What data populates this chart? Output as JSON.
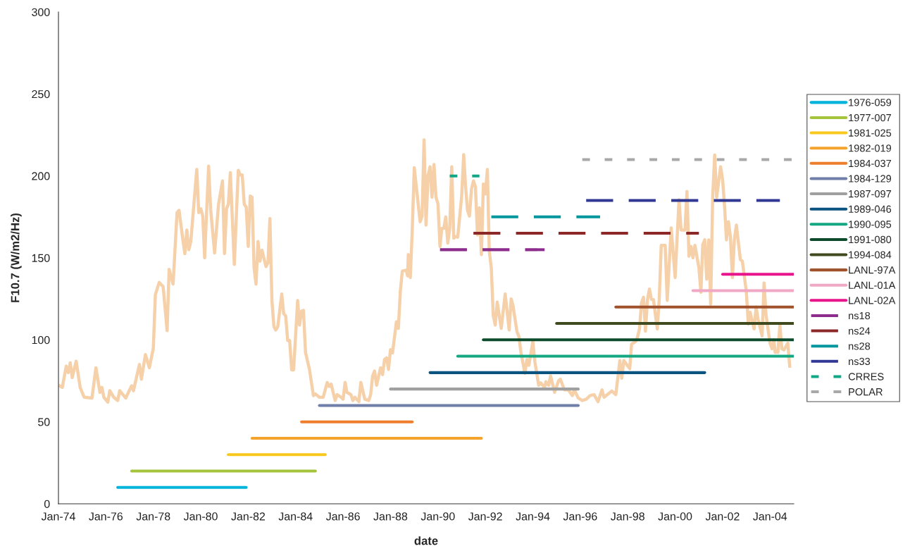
{
  "chart_data": {
    "type": "line",
    "xlabel": "date",
    "ylabel": "F10.7 (W/m2/Hz)",
    "xlim": [
      "1974-01",
      "2005-01"
    ],
    "ylim": [
      0,
      300
    ],
    "xticks": [
      {
        "value": "1974-01",
        "label": "Jan-74"
      },
      {
        "value": "1976-01",
        "label": "Jan-76"
      },
      {
        "value": "1978-01",
        "label": "Jan-78"
      },
      {
        "value": "1980-01",
        "label": "Jan-80"
      },
      {
        "value": "1982-01",
        "label": "Jan-82"
      },
      {
        "value": "1984-01",
        "label": "Jan-84"
      },
      {
        "value": "1986-01",
        "label": "Jan-86"
      },
      {
        "value": "1988-01",
        "label": "Jan-88"
      },
      {
        "value": "1990-01",
        "label": "Jan-90"
      },
      {
        "value": "1992-01",
        "label": "Jan-92"
      },
      {
        "value": "1994-01",
        "label": "Jan-94"
      },
      {
        "value": "1996-01",
        "label": "Jan-96"
      },
      {
        "value": "1998-01",
        "label": "Jan-98"
      },
      {
        "value": "2000-01",
        "label": "Jan-00"
      },
      {
        "value": "2002-01",
        "label": "Jan-02"
      },
      {
        "value": "2004-01",
        "label": "Jan-04"
      }
    ],
    "yticks": [
      0,
      50,
      100,
      150,
      200,
      250,
      300
    ],
    "grid": false,
    "legend": "right",
    "marker": "none",
    "series": [
      {
        "color": "#f5d0a9",
        "line_style": "solid",
        "x": [
          "1974-01",
          "1974-03",
          "1974-05",
          "1974-06",
          "1974-07",
          "1974-08",
          "1974-10",
          "1974-12",
          "1975-02",
          "1975-06",
          "1975-08",
          "1975-10",
          "1975-11",
          "1975-12",
          "1976-02",
          "1976-03",
          "1976-05",
          "1976-07",
          "1976-08",
          "1976-11",
          "1977-02",
          "1977-03",
          "1977-06",
          "1977-07",
          "1977-09",
          "1977-11",
          "1978-01",
          "1978-02",
          "1978-04",
          "1978-06",
          "1978-08",
          "1978-09",
          "1978-11",
          "1979-01",
          "1979-02",
          "1979-04",
          "1979-05",
          "1979-06",
          "1979-07",
          "1979-08",
          "1979-11",
          "1979-12",
          "1980-01",
          "1980-02",
          "1980-03",
          "1980-05",
          "1980-06",
          "1980-08",
          "1980-10",
          "1980-12",
          "1981-01",
          "1981-02",
          "1981-03",
          "1981-04",
          "1981-06",
          "1981-08",
          "1981-09",
          "1981-10",
          "1981-11",
          "1981-12",
          "1982-01",
          "1982-02",
          "1982-03",
          "1982-04",
          "1982-05",
          "1982-06",
          "1982-07",
          "1982-08",
          "1982-10",
          "1982-11",
          "1982-12",
          "1983-01",
          "1983-02",
          "1983-03",
          "1983-04",
          "1983-06",
          "1983-07",
          "1983-08",
          "1983-09",
          "1983-10",
          "1983-11",
          "1983-12",
          "1984-02",
          "1984-03",
          "1984-04",
          "1984-05",
          "1984-06",
          "1984-08",
          "1984-10",
          "1984-11",
          "1985-01",
          "1985-03",
          "1985-05",
          "1985-06",
          "1985-07",
          "1985-09",
          "1985-10",
          "1985-12",
          "1986-01",
          "1986-02",
          "1986-03",
          "1986-05",
          "1986-06",
          "1986-07",
          "1986-09",
          "1986-10",
          "1986-12",
          "1987-02",
          "1987-03",
          "1987-04",
          "1987-05",
          "1987-06",
          "1987-08",
          "1987-09",
          "1987-10",
          "1987-11",
          "1987-12",
          "1988-01",
          "1988-02",
          "1988-04",
          "1988-05",
          "1988-06",
          "1988-07",
          "1988-09",
          "1988-09-20",
          "1988-10",
          "1988-11",
          "1988-12",
          "1989-01",
          "1989-04",
          "1989-05",
          "1989-06",
          "1989-07",
          "1989-08",
          "1989-09",
          "1989-10",
          "1989-11",
          "1989-12",
          "1990-01",
          "1990-02",
          "1990-03",
          "1990-04",
          "1990-05",
          "1990-06",
          "1990-07",
          "1990-08",
          "1990-09",
          "1990-10",
          "1990-11",
          "1991-01",
          "1991-02",
          "1991-03",
          "1991-04",
          "1991-05",
          "1991-06",
          "1991-07",
          "1991-08",
          "1991-09",
          "1991-10",
          "1991-11",
          "1991-12",
          "1992-01",
          "1992-02",
          "1992-03",
          "1992-04",
          "1992-05",
          "1992-06",
          "1992-07",
          "1992-09",
          "1992-11",
          "1993-01",
          "1993-02",
          "1993-03",
          "1993-05",
          "1993-06",
          "1993-07",
          "1993-09",
          "1993-10",
          "1993-11",
          "1994-01",
          "1994-02",
          "1994-04",
          "1994-05",
          "1994-07",
          "1994-07-20",
          "1994-09",
          "1994-10",
          "1994-12",
          "1995-02",
          "1995-03",
          "1995-05",
          "1995-07",
          "1995-09",
          "1995-10",
          "1995-12",
          "1996-02",
          "1996-04",
          "1996-06",
          "1996-08",
          "1996-10",
          "1996-12",
          "1997-01",
          "1997-05",
          "1997-07",
          "1997-08",
          "1997-09",
          "1997-10",
          "1997-11",
          "1998-02",
          "1998-03",
          "1998-05",
          "1998-06",
          "1998-07",
          "1998-08",
          "1998-09",
          "1998-10",
          "1998-11",
          "1998-12",
          "1999-01",
          "1999-02",
          "1999-04",
          "1999-05",
          "1999-06",
          "1999-08",
          "1999-09",
          "1999-11",
          "2000-01",
          "2000-03",
          "2000-04",
          "2000-06",
          "2000-07",
          "2000-08",
          "2000-09",
          "2000-10",
          "2000-11",
          "2001-01",
          "2001-02",
          "2001-03",
          "2001-04",
          "2001-05",
          "2001-06",
          "2001-07",
          "2001-08",
          "2001-09",
          "2001-10",
          "2001-12",
          "2002-01",
          "2002-02",
          "2002-03",
          "2002-04",
          "2002-05",
          "2002-06",
          "2002-07",
          "2002-08",
          "2002-10",
          "2002-11",
          "2003-01",
          "2003-02",
          "2003-03",
          "2003-05",
          "2003-06",
          "2003-07",
          "2003-09",
          "2003-10",
          "2003-11",
          "2004-01",
          "2004-02",
          "2004-03",
          "2004-03-20",
          "2004-05",
          "2004-06",
          "2004-07",
          "2004-08",
          "2004-10",
          "2004-11"
        ],
        "values": [
          72.3,
          71,
          84,
          80,
          86,
          77,
          87,
          71,
          65,
          64.5,
          83,
          68,
          71,
          65,
          62,
          69,
          65,
          63,
          69,
          64.5,
          72,
          69,
          85,
          76,
          91,
          83,
          95,
          127.5,
          135,
          132.5,
          105.6,
          143,
          134,
          177.6,
          179,
          161,
          152.6,
          167,
          155,
          160,
          204,
          177.6,
          180,
          175.5,
          150,
          206,
          180,
          153,
          182.7,
          197,
          152.6,
          180,
          182.7,
          202,
          146,
          203.4,
          200.6,
          200.6,
          182.7,
          181,
          157,
          187.7,
          187,
          144,
          134,
          160,
          148,
          154.7,
          144.7,
          147,
          174,
          124,
          108,
          106,
          108,
          128,
          116,
          114.6,
          99.6,
          99.6,
          81.7,
          81.7,
          124,
          109,
          117.5,
          118,
          92.4,
          82,
          66,
          67,
          65,
          65,
          74,
          71.6,
          73,
          63,
          66.6,
          65,
          63.8,
          74,
          68,
          66.6,
          63,
          65,
          62.3,
          74,
          63.8,
          63,
          66.6,
          78,
          81,
          72.3,
          83,
          78.8,
          88,
          89,
          82,
          94,
          92,
          111,
          107,
          130,
          142,
          142.5,
          139,
          152,
          138,
          167,
          205,
          172,
          175.5,
          222,
          170,
          200,
          205.6,
          187,
          207,
          187,
          183,
          157,
          168,
          168,
          175,
          159,
          168,
          205.6,
          162,
          163,
          162.6,
          187.7,
          213,
          194,
          179,
          175.5,
          192,
          197,
          193.4,
          164,
          180.5,
          152,
          195,
          189,
          204,
          154,
          144,
          115,
          109,
          123,
          107,
          128,
          106,
          125,
          121,
          105,
          102,
          92.4,
          79.5,
          88,
          84.5,
          99,
          86.7,
          72.3,
          73.8,
          70.9,
          74.5,
          72.3,
          78,
          68,
          75,
          76,
          69.5,
          69.5,
          66,
          69.5,
          64.5,
          63,
          63.8,
          66,
          66.6,
          62.3,
          69.5,
          65,
          68.8,
          66.6,
          76.6,
          87.4,
          76.6,
          87.4,
          82.4,
          97.4,
          98.9,
          101.7,
          106.7,
          122.5,
          126,
          105.3,
          124.6,
          131,
          124.6,
          124.6,
          106.7,
          125,
          157.6,
          157.6,
          124,
          168.3,
          138,
          185.5,
          167,
          167,
          190.5,
          151,
          157,
          150,
          157.6,
          144,
          129,
          158,
          161,
          137,
          161,
          121.8,
          187,
          212.8,
          187,
          205.6,
          197.7,
          181,
          161,
          172,
          163,
          138,
          161,
          170,
          149,
          148,
          129.6,
          109.6,
          116.8,
          106.7,
          120,
          112.5,
          102.4,
          134.7,
          115,
          98,
          94.6,
          100,
          92.4,
          92.4,
          109,
          94.6,
          93.8,
          98,
          83
        ]
      },
      {
        "name": "1976-059",
        "color": "#00b4dc",
        "line_style": "solid",
        "x": [
          "1976-07",
          "1981-12"
        ],
        "values": [
          10,
          10
        ]
      },
      {
        "name": "1977-007",
        "color": "#a4c43c",
        "line_style": "solid",
        "x": [
          "1977-02",
          "1984-11"
        ],
        "values": [
          20,
          20
        ]
      },
      {
        "name": "1981-025",
        "color": "#f8c81c",
        "line_style": "solid",
        "x": [
          "1981-03",
          "1985-04"
        ],
        "values": [
          30,
          30
        ]
      },
      {
        "name": "1982-019",
        "color": "#f4a42c",
        "line_style": "solid",
        "x": [
          "1982-03",
          "1991-11"
        ],
        "values": [
          40,
          40
        ]
      },
      {
        "name": "1984-037",
        "color": "#ee7d2c",
        "line_style": "solid",
        "x": [
          "1984-04",
          "1988-12"
        ],
        "values": [
          50,
          50
        ]
      },
      {
        "name": "1984-129",
        "color": "#6f7faa",
        "line_style": "solid",
        "x": [
          "1985-01",
          "1995-12"
        ],
        "values": [
          60,
          60
        ]
      },
      {
        "name": "1987-097",
        "color": "#a0a0a0",
        "line_style": "solid",
        "x": [
          "1988-01",
          "1995-12"
        ],
        "values": [
          70,
          70
        ]
      },
      {
        "name": "1989-046",
        "color": "#0c5480",
        "line_style": "solid",
        "x": [
          "1989-09",
          "2001-04"
        ],
        "values": [
          80,
          80
        ]
      },
      {
        "name": "1990-095",
        "color": "#14a882",
        "line_style": "solid",
        "x": [
          "1990-11",
          "2005-01"
        ],
        "values": [
          90,
          90
        ]
      },
      {
        "name": "1991-080",
        "color": "#0c4c2c",
        "line_style": "solid",
        "x": [
          "1991-12",
          "2005-01"
        ],
        "values": [
          100,
          100
        ]
      },
      {
        "name": "1994-084",
        "color": "#3f4a1e",
        "line_style": "solid",
        "x": [
          "1995-01",
          "2005-01"
        ],
        "values": [
          110,
          110
        ]
      },
      {
        "name": "LANL-97A",
        "color": "#a0522d",
        "line_style": "solid",
        "x": [
          "1997-07",
          "2005-01"
        ],
        "values": [
          120,
          120
        ]
      },
      {
        "name": "LANL-01A",
        "color": "#f0a8c4",
        "line_style": "solid",
        "x": [
          "2000-10",
          "2005-01"
        ],
        "values": [
          130,
          130
        ]
      },
      {
        "name": "LANL-02A",
        "color": "#e8148c",
        "line_style": "solid",
        "x": [
          "2002-01",
          "2005-01"
        ],
        "values": [
          140,
          140
        ]
      },
      {
        "name": "ns18",
        "color": "#8c2c8c",
        "line_style": "dashed",
        "x": [
          "1990-02",
          "1994-07"
        ],
        "values": [
          155,
          155
        ]
      },
      {
        "name": "ns24",
        "color": "#8c2828",
        "line_style": "dashed",
        "x": [
          "1991-07",
          "2001-01"
        ],
        "values": [
          165,
          165
        ]
      },
      {
        "name": "ns28",
        "color": "#00969e",
        "line_style": "dashed",
        "x": [
          "1992-04",
          "1996-11"
        ],
        "values": [
          175,
          175
        ]
      },
      {
        "name": "ns33",
        "color": "#303894",
        "line_style": "dashed",
        "x": [
          "1996-04",
          "2004-06"
        ],
        "values": [
          185,
          185
        ]
      },
      {
        "name": "CRRES",
        "color": "#10a884",
        "line_style": "dotted",
        "x": [
          "1990-07",
          "1991-10"
        ],
        "values": [
          200,
          200
        ]
      },
      {
        "name": "POLAR",
        "color": "#a8a8a8",
        "line_style": "dotted",
        "x": [
          "1996-02",
          "2005-01"
        ],
        "values": [
          210,
          210
        ]
      }
    ]
  }
}
